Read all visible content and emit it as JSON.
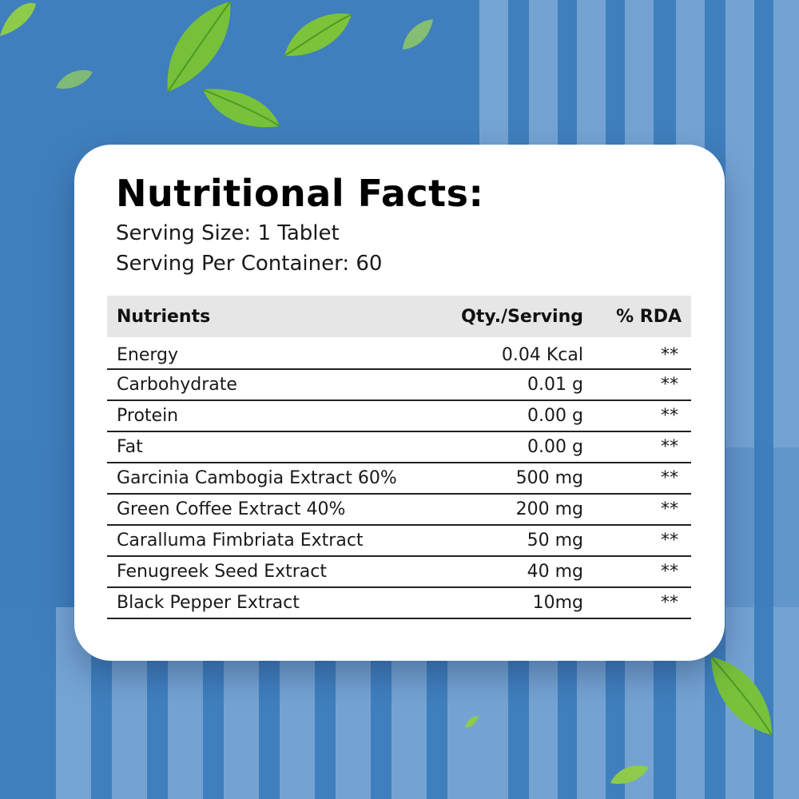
{
  "title": "Nutritional Facts:",
  "serving_size": "Serving Size: 1 Tablet",
  "servings_per_container": "Serving Per Container: 60",
  "table": {
    "headers": [
      "Nutrients",
      "Qty./Serving",
      "% RDA"
    ],
    "rows": [
      {
        "nutrient": "Energy",
        "qty": "0.04 Kcal",
        "rda": "**"
      },
      {
        "nutrient": "Carbohydrate",
        "qty": "0.01 g",
        "rda": "**"
      },
      {
        "nutrient": "Protein",
        "qty": "0.00 g",
        "rda": "**"
      },
      {
        "nutrient": "Fat",
        "qty": "0.00 g",
        "rda": "**"
      },
      {
        "nutrient": "Garcinia Cambogia Extract 60%",
        "qty": "500 mg",
        "rda": "**"
      },
      {
        "nutrient": "Green Coffee Extract 40%",
        "qty": "200 mg",
        "rda": "**"
      },
      {
        "nutrient": "Caralluma Fimbriata Extract",
        "qty": "50 mg",
        "rda": "**"
      },
      {
        "nutrient": "Fenugreek Seed Extract",
        "qty": "40 mg",
        "rda": "**"
      },
      {
        "nutrient": "Black Pepper Extract",
        "qty": "10mg",
        "rda": "**"
      }
    ]
  },
  "colors": {
    "background": "#3f7fbd",
    "stripe_light": "#7aa8d6",
    "card": "#ffffff",
    "header_row": "#e6e6e6",
    "leaf": "#7cc33a"
  },
  "decorations": [
    "leaf-icon",
    "leaf-icon",
    "leaf-icon",
    "leaf-icon",
    "leaf-icon",
    "leaf-icon",
    "leaf-icon",
    "leaf-icon"
  ]
}
